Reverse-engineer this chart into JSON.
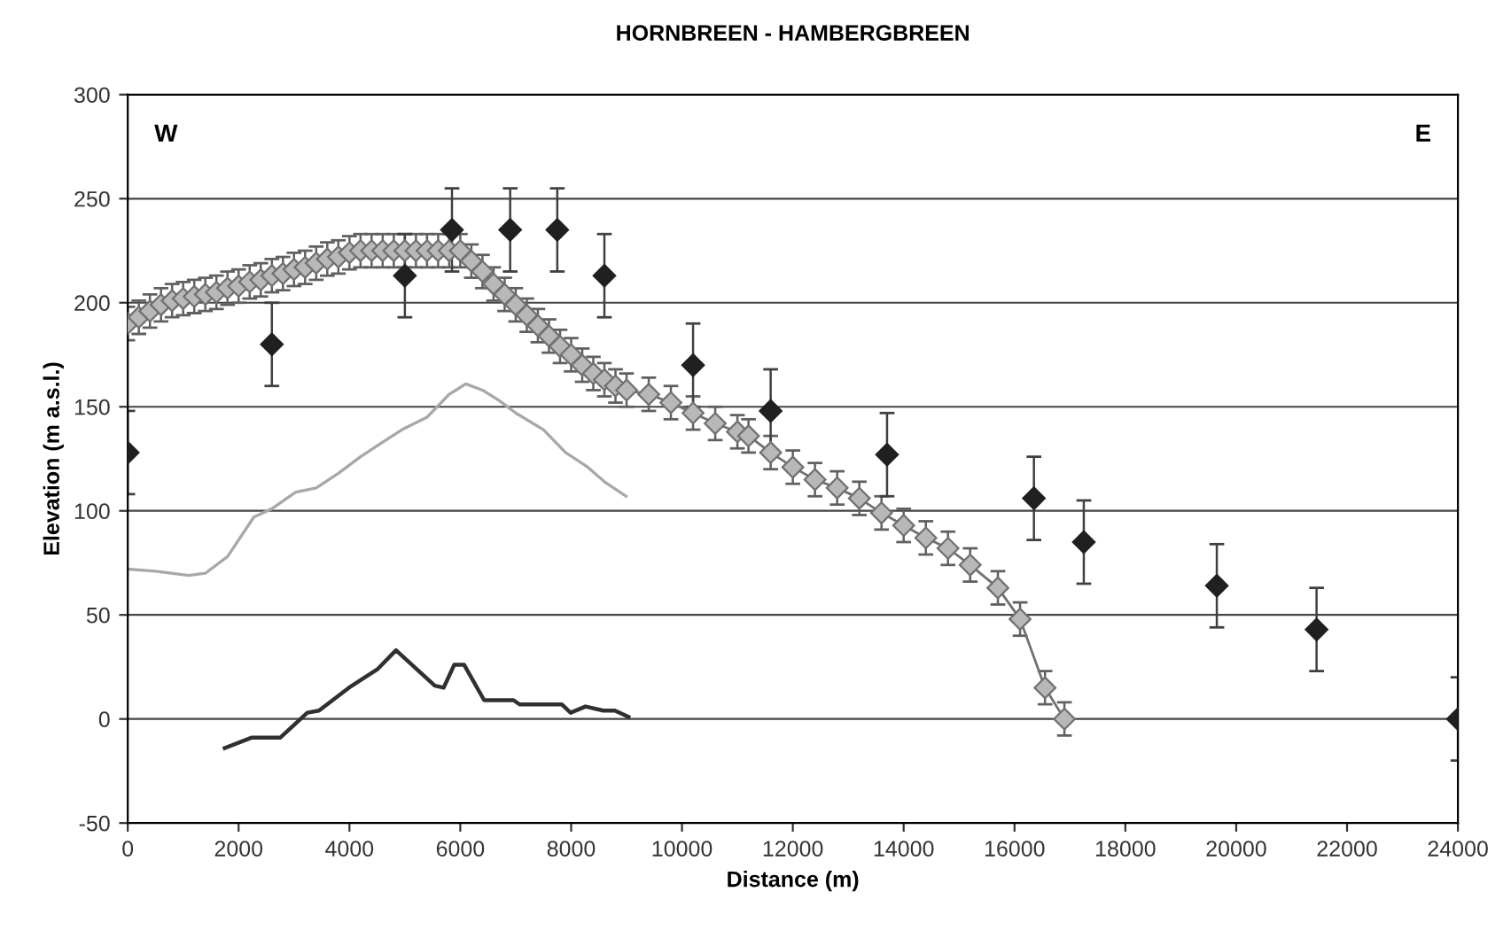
{
  "chart_data": {
    "type": "scatter",
    "title": "HORNBREEN - HAMBERGBREEN",
    "xlabel": "Distance (m)",
    "ylabel": "Elevation (m a.s.l.)",
    "annotations": [
      "W",
      "E"
    ],
    "xlim": [
      0,
      24000
    ],
    "xticks": [
      0,
      2000,
      4000,
      6000,
      8000,
      10000,
      12000,
      14000,
      16000,
      18000,
      20000,
      22000,
      24000
    ],
    "ylim": [
      -50,
      300
    ],
    "yticks": [
      -50,
      0,
      50,
      100,
      150,
      200,
      250,
      300
    ],
    "grid": "y",
    "legend": false,
    "series": [
      {
        "type": "line",
        "color": "#a8a8a8",
        "marker": "none",
        "x": [
          0,
          500,
          1100,
          1400,
          1800,
          2275,
          2600,
          3030,
          3400,
          3800,
          4200,
          4600,
          4950,
          5400,
          5800,
          6100,
          6400,
          6700,
          7000,
          7500,
          7900,
          8300,
          8600,
          8990
        ],
        "values": [
          72,
          71,
          69,
          70,
          78,
          97,
          101,
          109,
          111,
          118,
          126,
          133,
          139,
          145,
          156,
          161,
          158,
          153,
          147,
          139,
          128,
          121,
          114,
          107
        ]
      },
      {
        "type": "line",
        "color": "#303030",
        "marker": "none",
        "x": [
          1750,
          2230,
          2750,
          3240,
          3450,
          3990,
          4510,
          4840,
          5540,
          5700,
          5890,
          6070,
          6430,
          6960,
          7070,
          7830,
          7990,
          8260,
          8580,
          8790,
          9035
        ],
        "values": [
          -14,
          -9,
          -9,
          3,
          4,
          15,
          24,
          33,
          16,
          15,
          26,
          26,
          9,
          9,
          7,
          7,
          3,
          6,
          4,
          4,
          1
        ]
      },
      {
        "type": "line",
        "color": "#b8b8b8",
        "marker": "diamond",
        "x": [
          0,
          200,
          400,
          600,
          800,
          1000,
          1200,
          1400,
          1600,
          1800,
          2000,
          2200,
          2400,
          2600,
          2800,
          3000,
          3200,
          3400,
          3600,
          3800,
          4000,
          4200,
          4400,
          4600,
          4800,
          5000,
          5200,
          5400,
          5600,
          5800,
          6000,
          6200,
          6400,
          6600,
          6800,
          7000,
          7200,
          7400,
          7600,
          7800,
          8000,
          8200,
          8400,
          8600,
          8800,
          9000,
          9400,
          9800,
          10200,
          10600,
          11000,
          11200,
          11600,
          12000,
          12400,
          12800,
          13200,
          13600,
          14000,
          14400,
          14800,
          15200,
          15700,
          16100,
          16550,
          16900
        ],
        "values": [
          190,
          193,
          196,
          199,
          201,
          202,
          203,
          204,
          205,
          207,
          208,
          210,
          211,
          213,
          214,
          216,
          217,
          219,
          221,
          222,
          224,
          225,
          225,
          225,
          225,
          225,
          225,
          225,
          225,
          225,
          225,
          220,
          215,
          209,
          204,
          199,
          194,
          189,
          184,
          179,
          175,
          170,
          166,
          163,
          160,
          158,
          156,
          152,
          147,
          142,
          138,
          136,
          128,
          121,
          115,
          111,
          106,
          99,
          93,
          87,
          82,
          74,
          63,
          48,
          15,
          0
        ],
        "errors": [
          8,
          8,
          8,
          8,
          8,
          8,
          8,
          8,
          8,
          8,
          8,
          8,
          8,
          8,
          8,
          8,
          8,
          8,
          8,
          8,
          8,
          8,
          8,
          8,
          8,
          8,
          8,
          8,
          8,
          8,
          8,
          8,
          8,
          8,
          8,
          8,
          8,
          8,
          8,
          8,
          8,
          8,
          8,
          8,
          8,
          8,
          8,
          8,
          8,
          8,
          8,
          8,
          8,
          8,
          8,
          8,
          8,
          8,
          8,
          8,
          8,
          8,
          8,
          8,
          8,
          8
        ]
      },
      {
        "color": "#202020",
        "marker": "diamond",
        "x": [
          0,
          2600,
          5000,
          5850,
          6900,
          7750,
          8600,
          10200,
          11600,
          13700,
          16350,
          17250,
          19650,
          21450,
          24000
        ],
        "values": [
          128,
          180,
          213,
          235,
          235,
          235,
          213,
          170,
          148,
          127,
          106,
          85,
          64,
          43,
          0
        ],
        "errors": [
          20,
          20,
          20,
          20,
          20,
          20,
          20,
          20,
          20,
          20,
          20,
          20,
          20,
          20,
          20
        ]
      }
    ]
  }
}
